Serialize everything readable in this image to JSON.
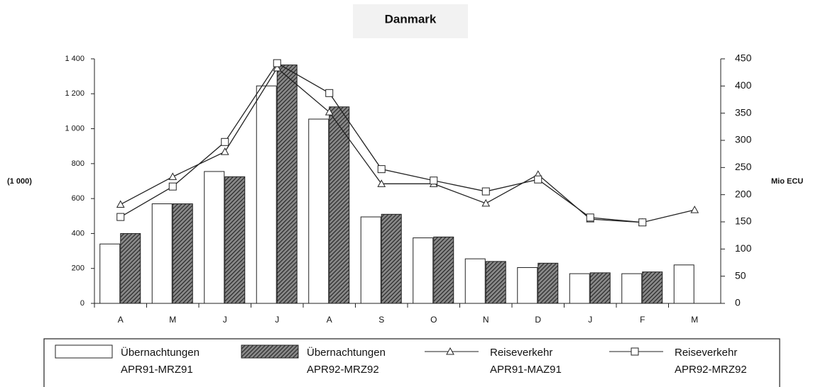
{
  "chart_data": {
    "type": "bar_line",
    "title": "Danmark",
    "ylabel": "(1 000)",
    "y2label": "Mio ECU",
    "categories": [
      "A",
      "M",
      "J",
      "J",
      "A",
      "S",
      "O",
      "N",
      "D",
      "J",
      "F",
      "M"
    ],
    "ylim": [
      0,
      1400
    ],
    "yticks": [
      0,
      200,
      400,
      600,
      800,
      {
        "value": 1000,
        "label": "1 000"
      },
      {
        "value": 1200,
        "label": "1 200"
      },
      {
        "value": 1400,
        "label": "1 400"
      }
    ],
    "y2lim": [
      0,
      450
    ],
    "y2ticks": [
      0,
      50,
      100,
      150,
      200,
      250,
      300,
      350,
      400,
      450
    ],
    "series": [
      {
        "name": "Übernachtungen\nAPR91-MRZ91",
        "kind": "bar",
        "color": "#ffffff",
        "values": [
          340,
          570,
          755,
          1245,
          1055,
          495,
          375,
          255,
          205,
          170,
          170,
          220
        ]
      },
      {
        "name": "Übernachtungen\nAPR92-MRZ92",
        "kind": "bar",
        "color": "#333333",
        "values": [
          400,
          570,
          725,
          1365,
          1125,
          510,
          380,
          240,
          230,
          175,
          180,
          null
        ]
      },
      {
        "name": "Reiseverkehr\nAPR91-MAZ91",
        "kind": "line",
        "marker": "triangle",
        "axis": "y2",
        "color": "#222222",
        "values": [
          182,
          233,
          279,
          433,
          352,
          220,
          220,
          184,
          237,
          155,
          149,
          172
        ]
      },
      {
        "name": "Reiseverkehr\nAPR92-MRZ92",
        "kind": "line",
        "marker": "square",
        "axis": "y2",
        "color": "#222222",
        "values": [
          159,
          215,
          297,
          442,
          387,
          247,
          226,
          206,
          228,
          158,
          149,
          null
        ]
      }
    ]
  }
}
